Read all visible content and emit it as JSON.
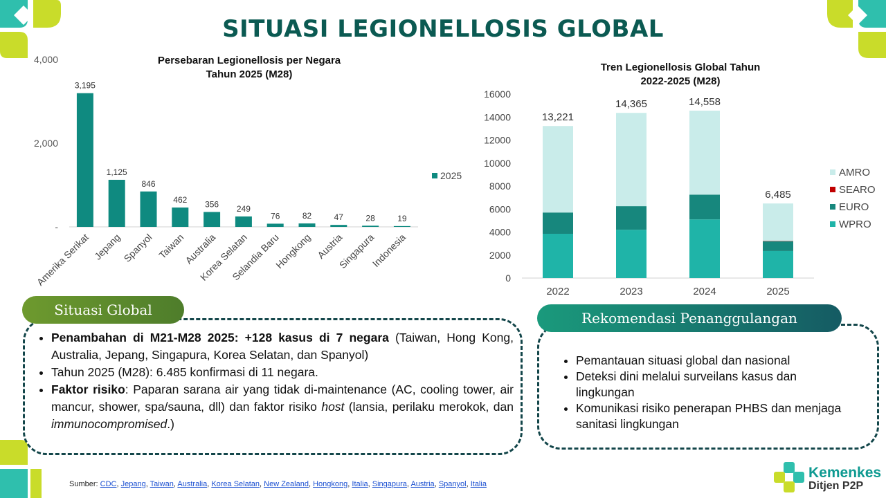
{
  "page": {
    "title": "SITUASI LEGIONELLOSIS GLOBAL",
    "brand": "Kemenkes",
    "brand_sub": "Ditjen P2P"
  },
  "colors": {
    "teal_dark": "#0f8a80",
    "wpro": "#1fb4a8",
    "euro": "#17877d",
    "searo": "#c00000",
    "amro": "#c9ecea",
    "title": "#0b5a52",
    "pill_left": "#5a8a2e",
    "pill_right": "#137a73",
    "box_border": "#13464a"
  },
  "chart_data": [
    {
      "type": "bar",
      "title_line1": "Persebaran Legionellosis per Negara",
      "title_line2": "Tahun 2025 (M28)",
      "categories": [
        "Amerika Serikat",
        "Jepang",
        "Spanyol",
        "Taiwan",
        "Australia",
        "Korea Selatan",
        "Selandia Baru",
        "Hongkong",
        "Austria",
        "Singapura",
        "Indonesia"
      ],
      "series": [
        {
          "name": "2025",
          "values": [
            3195,
            1125,
            846,
            462,
            356,
            249,
            76,
            82,
            47,
            28,
            19
          ]
        }
      ],
      "data_labels": [
        "3,195",
        "1,125",
        "846",
        "462",
        "356",
        "249",
        "76",
        "82",
        "47",
        "28",
        "19"
      ],
      "ylim": [
        0,
        4000
      ],
      "yticks": [
        0,
        2000,
        4000
      ],
      "ytick_labels": [
        "-",
        "2,000",
        "4,000"
      ],
      "legend": "right"
    },
    {
      "type": "bar",
      "stacked": true,
      "title_line1": "Tren Legionellosis Global Tahun",
      "title_line2": "2022-2025 (M28)",
      "categories": [
        "2022",
        "2023",
        "2024",
        "2025"
      ],
      "series": [
        {
          "name": "WPRO",
          "values": [
            3850,
            4200,
            5100,
            2350
          ]
        },
        {
          "name": "EURO",
          "values": [
            1850,
            2050,
            2150,
            850
          ]
        },
        {
          "name": "SEARO",
          "values": [
            0,
            0,
            0,
            30
          ]
        },
        {
          "name": "AMRO",
          "values": [
            7521,
            8115,
            7308,
            3255
          ]
        }
      ],
      "totals": [
        13221,
        14365,
        14558,
        6485
      ],
      "total_labels": [
        "13,221",
        "14,365",
        "14,558",
        "6,485"
      ],
      "ylim": [
        0,
        16000
      ],
      "yticks": [
        0,
        2000,
        4000,
        6000,
        8000,
        10000,
        12000,
        14000,
        16000
      ],
      "ytick_labels": [
        "0",
        "2000",
        "4000",
        "6000",
        "8000",
        "10000",
        "12000",
        "14000",
        "16000"
      ],
      "legend": "right"
    }
  ],
  "situasi": {
    "label": "Situasi Global",
    "items": [
      {
        "bold": "Penambahan di M21-M28 2025: +128 kasus di 7 negara",
        "text": " (Taiwan, Hong Kong, Australia, Jepang, Singapura, Korea Selatan, dan Spanyol)"
      },
      {
        "text": "Tahun 2025 (M28): 6.485 konfirmasi di 11 negara."
      },
      {
        "bold": "Faktor risiko",
        "text1": ": Paparan sarana air yang tidak di-maintenance (AC, cooling tower, air mancur, shower, spa/sauna, dll) dan faktor risiko ",
        "em1": "host",
        "text2": " (lansia, perilaku merokok, dan ",
        "em2": "immunocompromised",
        "text3": ".)"
      }
    ]
  },
  "rekomendasi": {
    "label": "Rekomendasi Penanggulangan",
    "items": [
      "Pemantauan situasi global dan nasional",
      "Deteksi dini melalui surveilans kasus dan lingkungan",
      "Komunikasi risiko penerapan PHBS dan menjaga sanitasi lingkungan"
    ]
  },
  "sumber": {
    "label": "Sumber: ",
    "links": [
      "CDC",
      "Jepang",
      "Taiwan",
      "Australia",
      "Korea Selatan",
      "New Zealand",
      "Hongkong",
      "Italia",
      "Singapura",
      "Austria",
      "Spanyol",
      "Italia"
    ]
  }
}
